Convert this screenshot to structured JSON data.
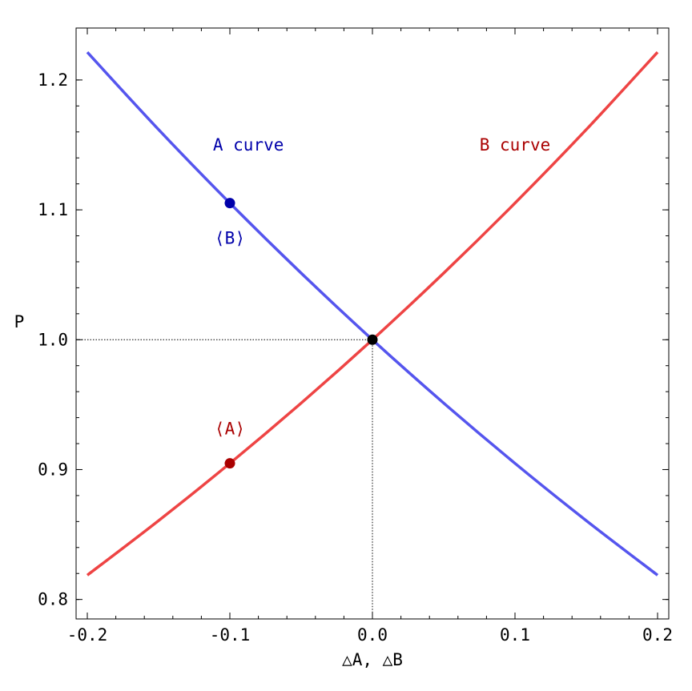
{
  "chart_data": {
    "type": "line",
    "title": "",
    "xlabel": "△A, △B",
    "ylabel": "P",
    "xlim": [
      -0.2,
      0.2
    ],
    "ylim": [
      0.785,
      1.24
    ],
    "x_ticks": [
      -0.2,
      -0.1,
      0.0,
      0.1,
      0.2
    ],
    "x_tick_labels": [
      "-0.2",
      "-0.1",
      "0.0",
      "0.1",
      "0.2"
    ],
    "y_ticks": [
      0.8,
      0.9,
      1.0,
      1.1,
      1.2
    ],
    "y_tick_labels": [
      "0.8",
      "0.9",
      "1.0",
      "1.1",
      "1.2"
    ],
    "grid": false,
    "series": [
      {
        "name": "A curve",
        "color": "#5555ee",
        "x": [
          -0.2,
          -0.15,
          -0.1,
          -0.05,
          0.0,
          0.05,
          0.1,
          0.15,
          0.2
        ],
        "y": [
          1.2214,
          1.1618,
          1.1052,
          1.0513,
          1.0,
          0.9512,
          0.9048,
          0.8607,
          0.8187
        ]
      },
      {
        "name": "B curve",
        "color": "#ee4444",
        "x": [
          -0.2,
          -0.15,
          -0.1,
          -0.05,
          0.0,
          0.05,
          0.1,
          0.15,
          0.2
        ],
        "y": [
          0.8187,
          0.8607,
          0.9048,
          0.9512,
          1.0,
          1.0513,
          1.1052,
          1.1618,
          1.2214
        ]
      }
    ],
    "points": [
      {
        "label": "⟨B⟩",
        "x": -0.1,
        "y": 1.1052,
        "color": "#0000aa",
        "label_color": "#0000aa",
        "label_position": "below"
      },
      {
        "label": "⟨A⟩",
        "x": -0.1,
        "y": 0.9048,
        "color": "#aa0000",
        "label_color": "#aa0000",
        "label_position": "above"
      },
      {
        "label": "",
        "x": 0.0,
        "y": 1.0,
        "color": "#000000"
      }
    ],
    "annotations": [
      {
        "text": "A curve",
        "x": -0.087,
        "y": 1.15,
        "color": "#0000aa"
      },
      {
        "text": "B curve",
        "x": 0.1,
        "y": 1.15,
        "color": "#aa0000"
      }
    ],
    "reference_point": {
      "x": 0.0,
      "y": 1.0
    }
  }
}
